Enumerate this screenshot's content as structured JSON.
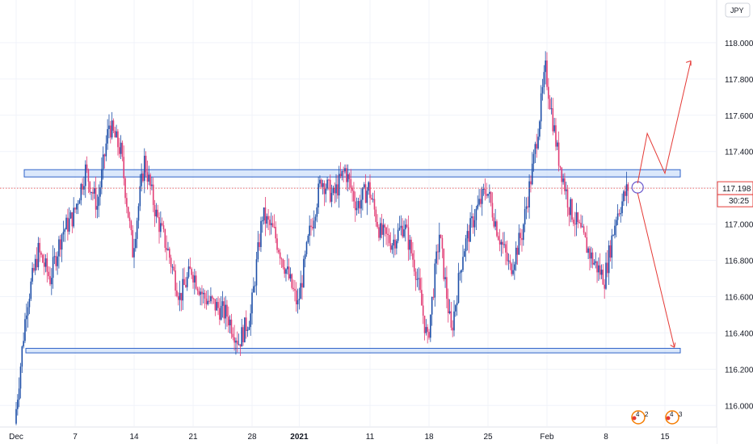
{
  "chart_data": {
    "type": "candlestick",
    "title": "",
    "currency_badge": "JPY",
    "ylim": [
      115.85,
      118.2
    ],
    "y_ticks": [
      "116.000",
      "116.200",
      "116.400",
      "116.600",
      "116.800",
      "117.000",
      "117.200",
      "117.400",
      "117.600",
      "117.800",
      "118.000"
    ],
    "x_ticks": [
      {
        "label": "Dec",
        "bar": 0,
        "bold": false
      },
      {
        "label": "7",
        "bar": 5,
        "bold": false
      },
      {
        "label": "14",
        "bar": 10,
        "bold": false
      },
      {
        "label": "21",
        "bar": 15,
        "bold": false
      },
      {
        "label": "28",
        "bar": 20,
        "bold": false
      },
      {
        "label": "2021",
        "bar": 24,
        "bold": true
      },
      {
        "label": "11",
        "bar": 30,
        "bold": false
      },
      {
        "label": "18",
        "bar": 35,
        "bold": false
      },
      {
        "label": "25",
        "bar": 40,
        "bold": false
      },
      {
        "label": "Feb",
        "bar": 45,
        "bold": false
      },
      {
        "label": "8",
        "bar": 50,
        "bold": false
      },
      {
        "label": "15",
        "bar": 55,
        "bold": false
      }
    ],
    "closes": [
      115.9,
      116.55,
      116.85,
      116.7,
      116.95,
      117.05,
      117.3,
      117.1,
      117.55,
      117.4,
      116.85,
      117.35,
      117.05,
      116.85,
      116.6,
      116.75,
      116.6,
      116.55,
      116.5,
      116.35,
      116.5,
      117.05,
      116.95,
      116.75,
      116.55,
      116.95,
      117.25,
      117.15,
      117.3,
      117.1,
      117.2,
      116.95,
      116.9,
      117.0,
      116.75,
      116.35,
      116.95,
      116.4,
      116.85,
      117.05,
      117.2,
      116.95,
      116.75,
      116.95,
      117.35,
      117.85,
      117.4,
      117.1,
      116.95,
      116.8,
      116.7,
      117.05,
      117.2
    ],
    "current_price": "117.198",
    "countdown": "30:25",
    "support_zone": [
      116.29,
      116.315
    ],
    "resistance_zone": [
      117.26,
      117.3
    ],
    "colors": {
      "up": "#1e4fa8",
      "down": "#e23d75",
      "zone_fill": "#cfe0fa",
      "zone_stroke": "#2e62c8",
      "arrows": "#e53935",
      "price_line": "#e53935"
    },
    "badges": [
      {
        "left": "4",
        "right": "2"
      },
      {
        "left": "4",
        "right": "3"
      }
    ]
  }
}
